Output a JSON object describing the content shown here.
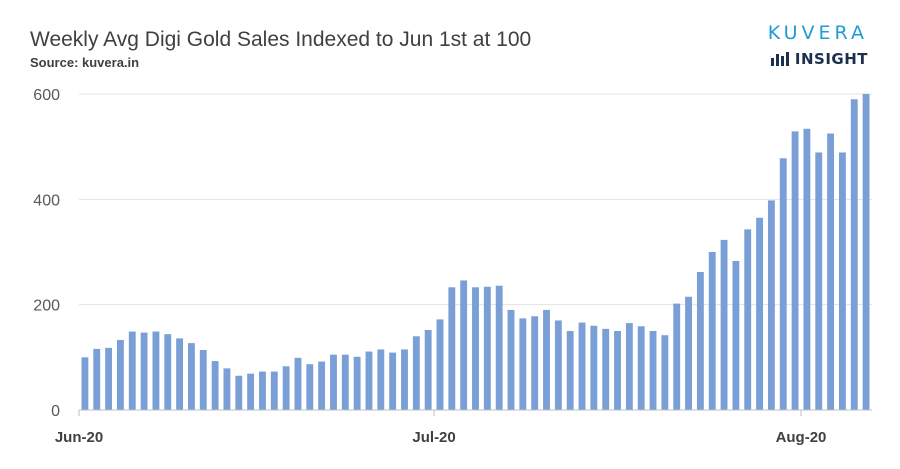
{
  "header": {
    "title": "Weekly Avg Digi Gold Sales Indexed to Jun 1st at 100",
    "source": "Source: kuvera.in"
  },
  "logo": {
    "word": "KUVERA",
    "sub": "INSIGHT",
    "icon": "bar-chart-icon",
    "word_color": "#1f9bd7",
    "sub_color": "#1b2f4f"
  },
  "chart_data": {
    "type": "bar",
    "bar_color": "#7a9fd6",
    "ylim": [
      0,
      600
    ],
    "yticks": [
      0,
      200,
      400,
      600
    ],
    "grid": true,
    "x_tick_labels": [
      {
        "label": "Jun-20",
        "index": 0
      },
      {
        "label": "Jul-20",
        "index": 30
      },
      {
        "label": "Aug-20",
        "index": 61
      }
    ],
    "values": [
      100,
      116,
      118,
      133,
      149,
      147,
      149,
      144,
      136,
      127,
      114,
      93,
      79,
      65,
      69,
      73,
      73,
      83,
      99,
      87,
      92,
      105,
      105,
      101,
      111,
      115,
      109,
      115,
      140,
      152,
      172,
      233,
      246,
      233,
      234,
      236,
      190,
      174,
      178,
      190,
      170,
      150,
      166,
      160,
      154,
      150,
      165,
      159,
      150,
      142,
      202,
      215,
      262,
      300,
      323,
      283,
      343,
      365,
      398,
      478,
      529,
      534,
      489,
      525,
      489,
      590,
      600
    ]
  }
}
